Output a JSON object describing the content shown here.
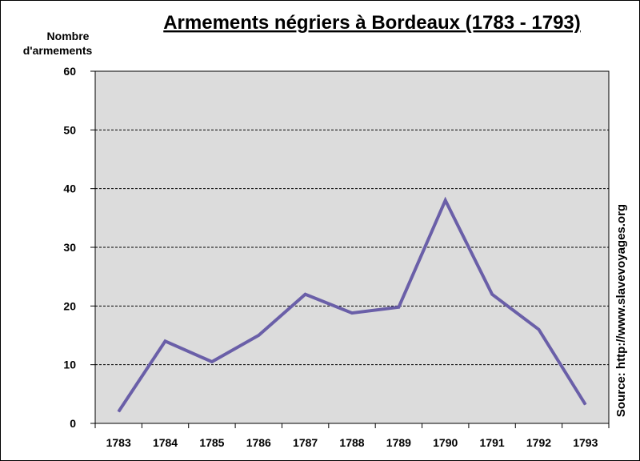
{
  "chart_data": {
    "type": "line",
    "title": "Armements négriers à Bordeaux (1783 - 1793)",
    "ylabel_line1": "Nombre",
    "ylabel_line2": "d'armements",
    "xlabel": "",
    "source": "Source: http://www.slavevoyages.org",
    "categories": [
      "1783",
      "1784",
      "1785",
      "1786",
      "1787",
      "1788",
      "1789",
      "1790",
      "1791",
      "1792",
      "1793"
    ],
    "series": [
      {
        "values": [
          2,
          14,
          10.5,
          15,
          22,
          18.8,
          19.8,
          38,
          22,
          16,
          3.2
        ]
      }
    ],
    "ylim": [
      0,
      60
    ],
    "yticks": [
      0,
      10,
      20,
      30,
      40,
      50,
      60
    ],
    "grid": true,
    "line_color": "#6a5fa8",
    "plot_background": "#dcdcdc"
  }
}
